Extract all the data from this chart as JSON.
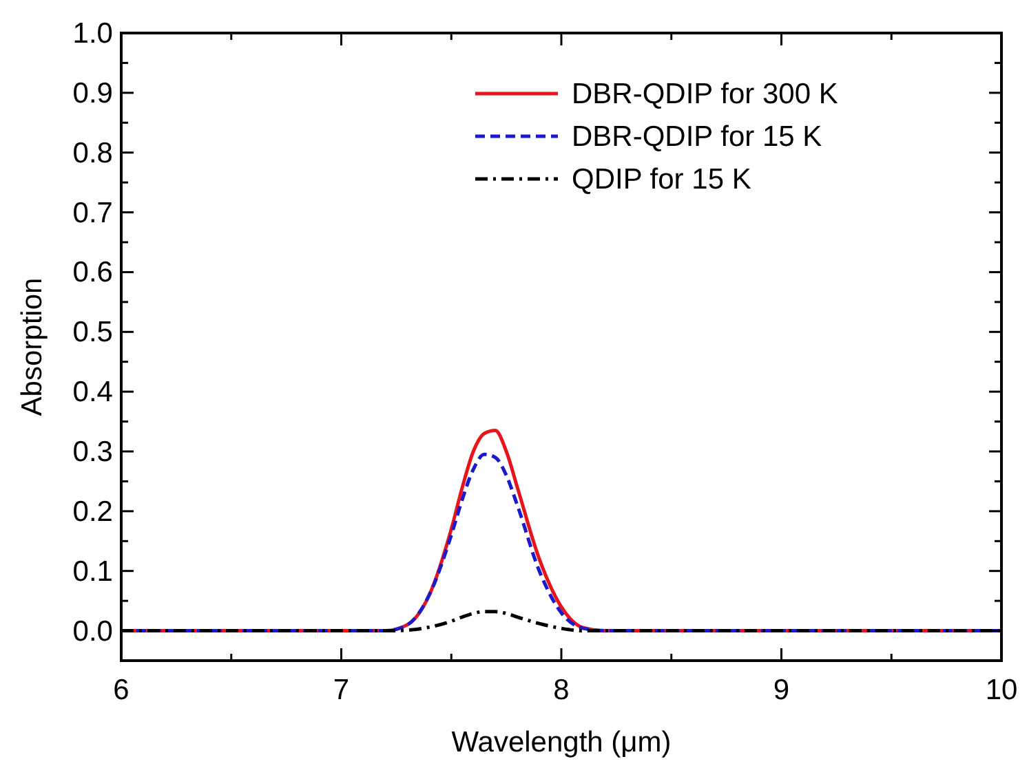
{
  "chart_data": {
    "type": "line",
    "xlabel": "Wavelength (μm)",
    "ylabel": "Absorption",
    "x": [
      6,
      7.2,
      7.3,
      7.4,
      7.5,
      7.55,
      7.6,
      7.65,
      7.7,
      7.75,
      7.8,
      7.9,
      8.0,
      8.1,
      8.2,
      10
    ],
    "series": [
      {
        "name": "DBR-QDIP for 300 K",
        "color": "#e8141c",
        "line_style": "solid",
        "values": [
          0,
          0,
          0.01,
          0.06,
          0.17,
          0.24,
          0.3,
          0.33,
          0.335,
          0.3,
          0.24,
          0.12,
          0.04,
          0.005,
          0,
          0
        ]
      },
      {
        "name": "DBR-QDIP for 15 K",
        "color": "#1a1acc",
        "line_style": "dashed",
        "values": [
          0,
          0,
          0.01,
          0.06,
          0.16,
          0.22,
          0.27,
          0.295,
          0.29,
          0.26,
          0.21,
          0.1,
          0.03,
          0.004,
          0,
          0
        ]
      },
      {
        "name": "QDIP for 15 K",
        "color": "#000000",
        "line_style": "dashdot",
        "values": [
          0,
          0,
          0.001,
          0.006,
          0.016,
          0.023,
          0.029,
          0.032,
          0.032,
          0.029,
          0.023,
          0.012,
          0.004,
          0,
          0,
          0
        ]
      }
    ],
    "xlim": [
      6,
      10
    ],
    "xticks": [
      6,
      {
        "value": 6.5,
        "label": null
      },
      7,
      {
        "value": 7.5,
        "label": null
      },
      8,
      {
        "value": 8.5,
        "label": null
      },
      9,
      {
        "value": 9.5,
        "label": null
      },
      10
    ],
    "ylim": [
      -0.05,
      1.0
    ],
    "yticks": [
      {
        "value": 0,
        "label": "0.0"
      },
      {
        "value": 0.05,
        "label": null
      },
      {
        "value": 0.1,
        "label": "0.1"
      },
      {
        "value": 0.15,
        "label": null
      },
      {
        "value": 0.2,
        "label": "0.2"
      },
      {
        "value": 0.25,
        "label": null
      },
      {
        "value": 0.3,
        "label": "0.3"
      },
      {
        "value": 0.35,
        "label": null
      },
      {
        "value": 0.4,
        "label": "0.4"
      },
      {
        "value": 0.45,
        "label": null
      },
      {
        "value": 0.5,
        "label": "0.5"
      },
      {
        "value": 0.55,
        "label": null
      },
      {
        "value": 0.6,
        "label": "0.6"
      },
      {
        "value": 0.65,
        "label": null
      },
      {
        "value": 0.7,
        "label": "0.7"
      },
      {
        "value": 0.75,
        "label": null
      },
      {
        "value": 0.8,
        "label": "0.8"
      },
      {
        "value": 0.85,
        "label": null
      },
      {
        "value": 0.9,
        "label": "0.9"
      },
      {
        "value": 0.95,
        "label": null
      },
      {
        "value": 1.0,
        "label": "1.0"
      }
    ],
    "grid": false,
    "legend": "top right"
  }
}
